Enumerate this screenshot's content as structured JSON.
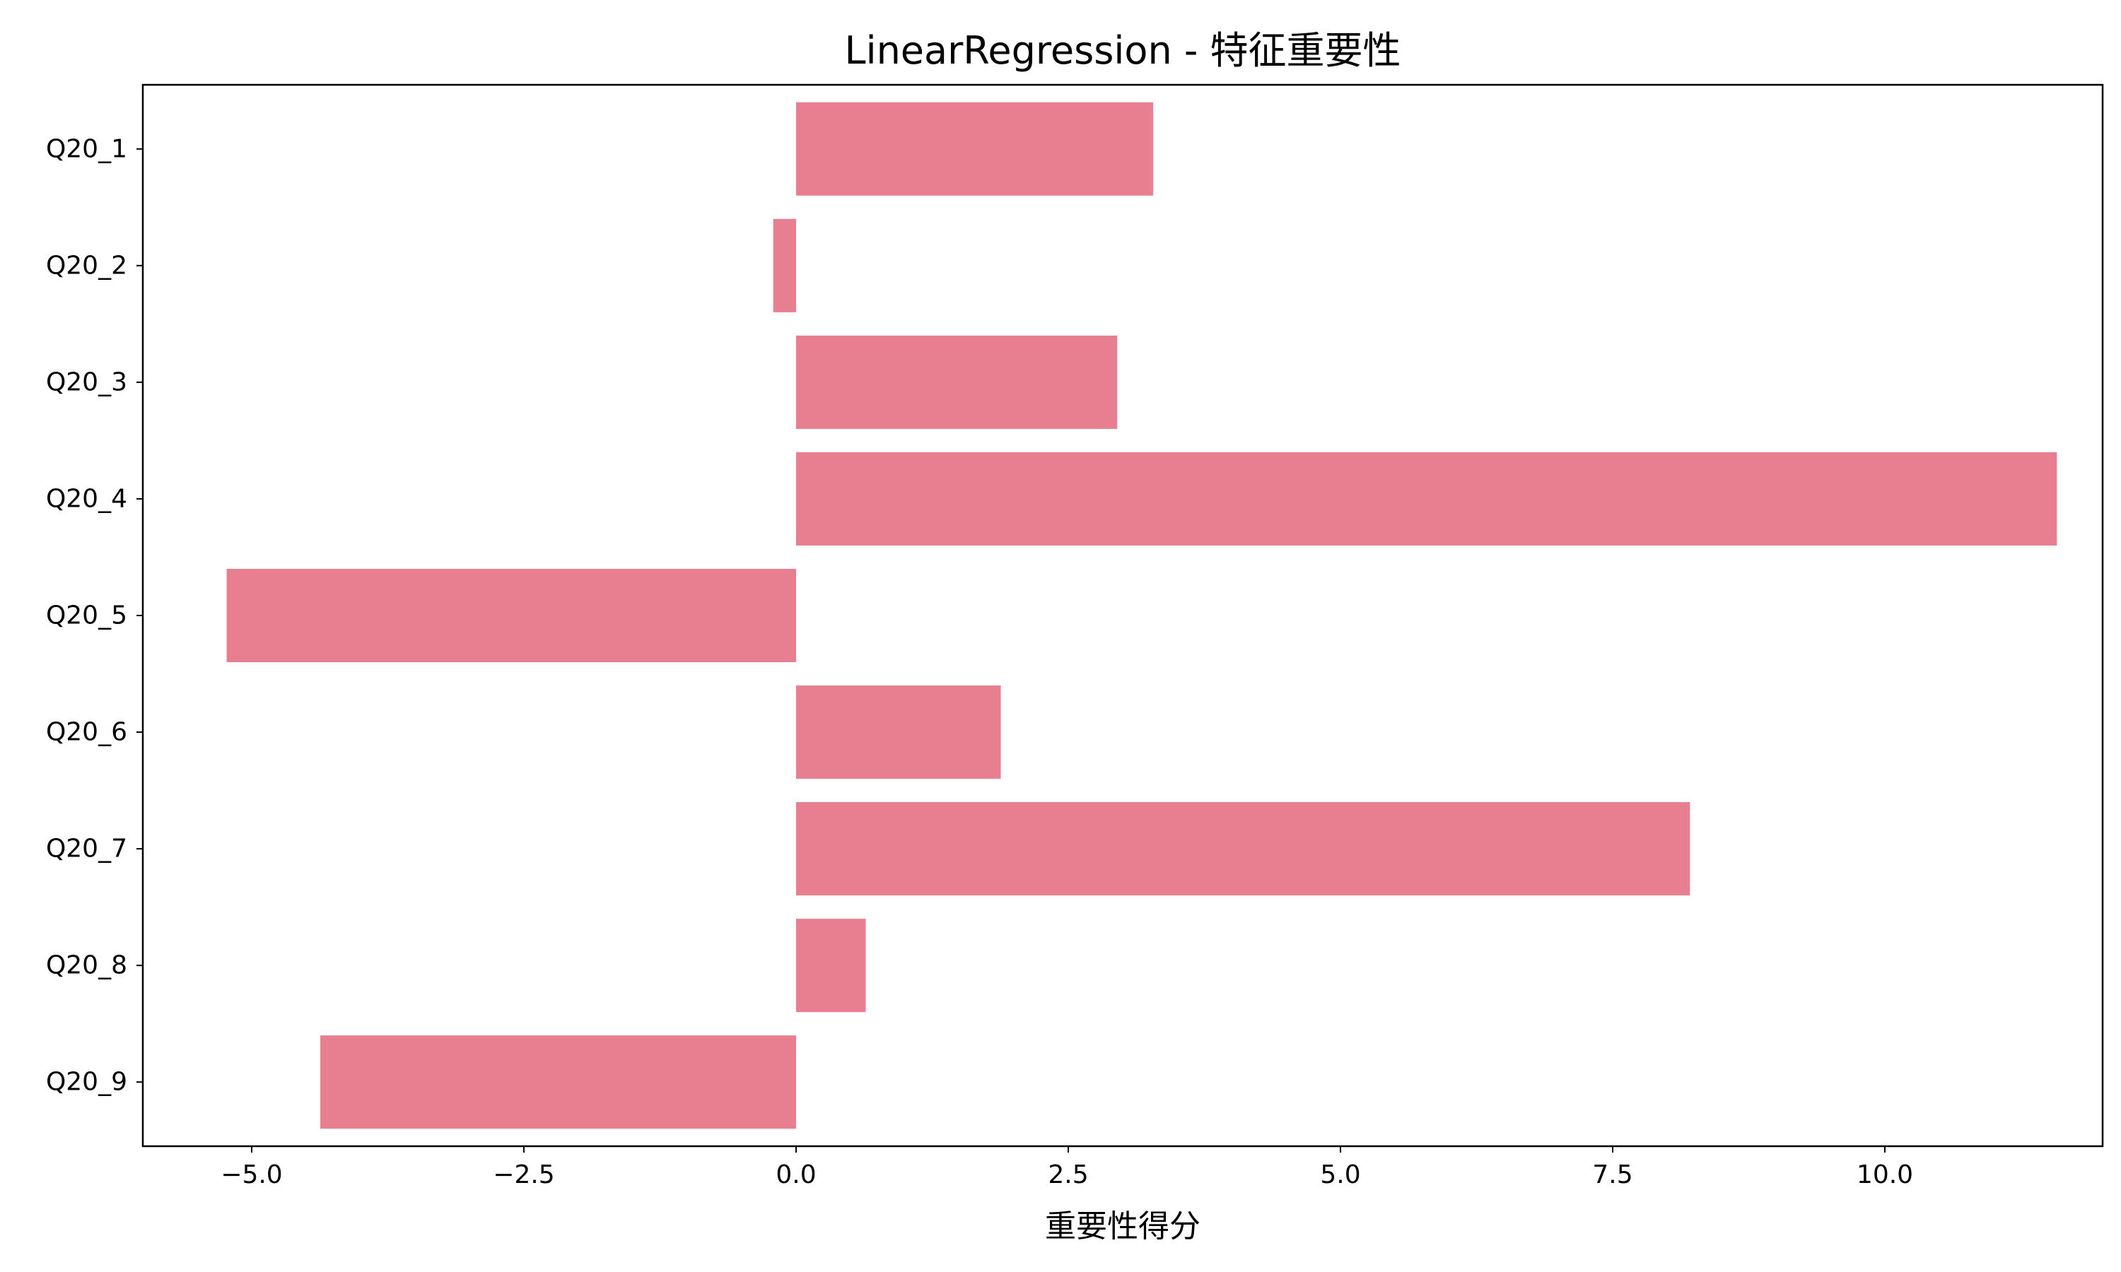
{
  "chart_data": {
    "type": "bar",
    "orientation": "horizontal",
    "title": "LinearRegression - 特征重要性",
    "xlabel": "重要性得分",
    "ylabel": "",
    "categories": [
      "Q20_1",
      "Q20_2",
      "Q20_3",
      "Q20_4",
      "Q20_5",
      "Q20_6",
      "Q20_7",
      "Q20_8",
      "Q20_9"
    ],
    "values": [
      3.28,
      -0.21,
      2.95,
      11.58,
      -5.23,
      1.88,
      8.21,
      0.64,
      -4.37
    ],
    "xlim": [
      -6.0,
      12.0
    ],
    "xticks": [
      -5.0,
      -2.5,
      0.0,
      2.5,
      5.0,
      7.5,
      10.0
    ],
    "xtick_labels": [
      "−5.0",
      "−2.5",
      "0.0",
      "2.5",
      "5.0",
      "7.5",
      "10.0"
    ],
    "grid": false,
    "bar_color": "#e77f91"
  }
}
